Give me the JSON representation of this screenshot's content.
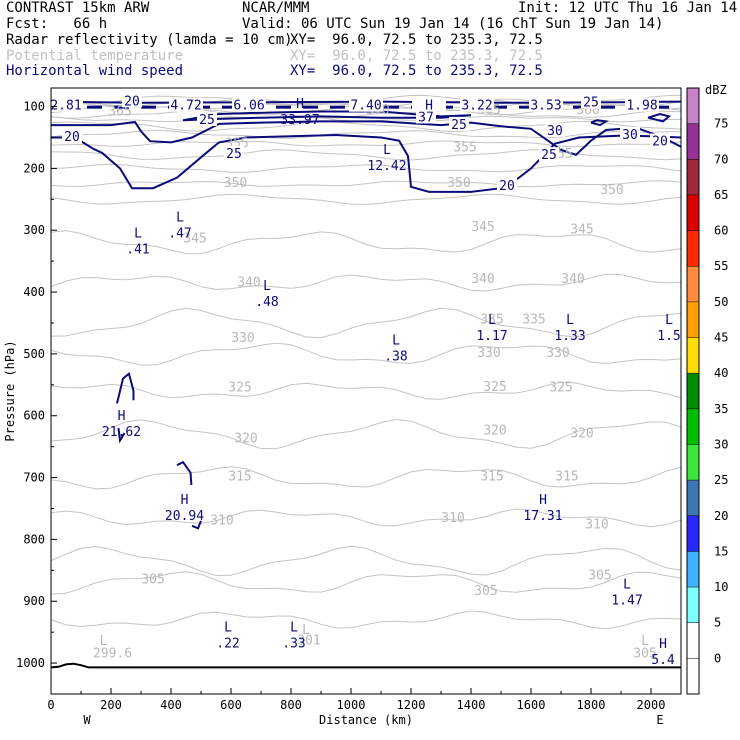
{
  "header": {
    "model": "CONTRAST 15km ARW",
    "org": "NCAR/MMM",
    "init": "Init: 12 UTC Thu 16 Jan 14",
    "fcst": "Fcst:   66 h",
    "valid": "Valid: 06 UTC Sun 19 Jan 14 (16 ChT Sun 19 Jan 14)",
    "fields": [
      {
        "name": "Radar reflectivity (lamda = 10 cm)",
        "xy": "XY=  96.0, 72.5 to 235.3, 72.5",
        "color": "#000000"
      },
      {
        "name": "Potential temperature",
        "xy": "XY=  96.0, 72.5 to 235.3, 72.5",
        "color": "#c0c0c0"
      },
      {
        "name": "Horizontal wind speed",
        "xy": "XY=  96.0, 72.5 to 235.3, 72.5",
        "color": "#0b0b7a"
      }
    ]
  },
  "chart_data": {
    "type": "cross-section contour",
    "xlabel": "Distance (km)",
    "ylabel": "Pressure (hPa)",
    "xlim": [
      0,
      2100
    ],
    "ylim": [
      1050,
      70
    ],
    "x_ticks": [
      0,
      200,
      400,
      600,
      800,
      1000,
      1200,
      1400,
      1600,
      1800,
      2000
    ],
    "y_ticks": [
      100,
      200,
      300,
      400,
      500,
      600,
      700,
      800,
      900,
      1000
    ],
    "x_end_labels": {
      "left": "W",
      "right": "E"
    },
    "colorbar": {
      "unit": "dBZ",
      "levels": [
        -5,
        0,
        5,
        10,
        15,
        20,
        25,
        30,
        35,
        40,
        45,
        50,
        55,
        60,
        65,
        70,
        75
      ],
      "tick_labels": [
        "0",
        "5",
        "10",
        "15",
        "20",
        "25",
        "30",
        "35",
        "40",
        "45",
        "50",
        "55",
        "60",
        "65",
        "70",
        "75"
      ],
      "colors": [
        "#ffffff",
        "#ffffff",
        "#7fffff",
        "#3cb4ff",
        "#2828ff",
        "#3c78b4",
        "#3ce63c",
        "#00be00",
        "#008c00",
        "#ffdc00",
        "#ffa000",
        "#ff8c3c",
        "#ff2800",
        "#dc0000",
        "#a0283c",
        "#963296",
        "#c882c8"
      ]
    },
    "theta_labels": [
      {
        "text": "365",
        "x": 230,
        "p": 106
      },
      {
        "text": "355",
        "x": 620,
        "p": 158
      },
      {
        "text": "355",
        "x": 1380,
        "p": 165
      },
      {
        "text": "355",
        "x": 1700,
        "p": 175
      },
      {
        "text": "350",
        "x": 615,
        "p": 222
      },
      {
        "text": "350",
        "x": 1360,
        "p": 222
      },
      {
        "text": "350",
        "x": 1870,
        "p": 233
      },
      {
        "text": "345",
        "x": 480,
        "p": 312
      },
      {
        "text": "345",
        "x": 1440,
        "p": 293
      },
      {
        "text": "345",
        "x": 1770,
        "p": 297
      },
      {
        "text": "340",
        "x": 660,
        "p": 383
      },
      {
        "text": "340",
        "x": 1440,
        "p": 377
      },
      {
        "text": "340",
        "x": 1740,
        "p": 377
      },
      {
        "text": "335",
        "x": 1470,
        "p": 443
      },
      {
        "text": "335",
        "x": 1610,
        "p": 443
      },
      {
        "text": "330",
        "x": 640,
        "p": 473
      },
      {
        "text": "330",
        "x": 1460,
        "p": 497
      },
      {
        "text": "330",
        "x": 1690,
        "p": 497
      },
      {
        "text": "325",
        "x": 630,
        "p": 553
      },
      {
        "text": "325",
        "x": 1480,
        "p": 552
      },
      {
        "text": "325",
        "x": 1700,
        "p": 553
      },
      {
        "text": "320",
        "x": 650,
        "p": 635
      },
      {
        "text": "320",
        "x": 1480,
        "p": 622
      },
      {
        "text": "320",
        "x": 1770,
        "p": 627
      },
      {
        "text": "315",
        "x": 630,
        "p": 697
      },
      {
        "text": "315",
        "x": 1470,
        "p": 697
      },
      {
        "text": "315",
        "x": 1720,
        "p": 697
      },
      {
        "text": "310",
        "x": 570,
        "p": 768
      },
      {
        "text": "310",
        "x": 1340,
        "p": 764
      },
      {
        "text": "310",
        "x": 1820,
        "p": 774
      },
      {
        "text": "305",
        "x": 340,
        "p": 863
      },
      {
        "text": "305",
        "x": 1450,
        "p": 882
      },
      {
        "text": "305",
        "x": 1830,
        "p": 857
      },
      {
        "text": "301",
        "x": 860,
        "p": 962
      },
      {
        "text": "L",
        "x": 850,
        "p": 945
      },
      {
        "text": "L",
        "x": 175,
        "p": 963
      },
      {
        "text": "299.6",
        "x": 205,
        "p": 983
      },
      {
        "text": "L",
        "x": 1980,
        "p": 963
      },
      {
        "text": "305",
        "x": 1980,
        "p": 983
      },
      {
        "text": "370",
        "x": 1090,
        "p": 104
      },
      {
        "text": "365",
        "x": 1460,
        "p": 104
      },
      {
        "text": "360",
        "x": 1790,
        "p": 104
      }
    ],
    "wind_contour_labels": [
      {
        "text": "20",
        "x": 270,
        "p": 90
      },
      {
        "text": "25",
        "x": 520,
        "p": 120
      },
      {
        "text": "37",
        "x": 1250,
        "p": 116
      },
      {
        "text": "25",
        "x": 1360,
        "p": 128
      },
      {
        "text": "25",
        "x": 1800,
        "p": 92
      },
      {
        "text": "30",
        "x": 1680,
        "p": 138
      },
      {
        "text": "30",
        "x": 1930,
        "p": 144
      },
      {
        "text": "20",
        "x": 70,
        "p": 148
      },
      {
        "text": "25",
        "x": 610,
        "p": 175
      },
      {
        "text": "25",
        "x": 1660,
        "p": 177
      },
      {
        "text": "20",
        "x": 2030,
        "p": 155
      },
      {
        "text": "20",
        "x": 1520,
        "p": 227
      }
    ],
    "extrema": [
      {
        "type": "H",
        "value": "33.97",
        "x": 830,
        "p": 109
      },
      {
        "type": "L",
        "value": "12.42",
        "x": 1120,
        "p": 183
      },
      {
        "type": "L",
        "value": ".47",
        "x": 430,
        "p": 292
      },
      {
        "type": "L",
        "value": ".41",
        "x": 290,
        "p": 318
      },
      {
        "type": "L",
        "value": ".48",
        "x": 720,
        "p": 403
      },
      {
        "type": "L",
        "value": "1.17",
        "x": 1470,
        "p": 458
      },
      {
        "type": "L",
        "value": "1.33",
        "x": 1730,
        "p": 458
      },
      {
        "type": "L",
        "value": "1.5",
        "x": 2060,
        "p": 458
      },
      {
        "type": "L",
        "value": ".38",
        "x": 1150,
        "p": 491
      },
      {
        "type": "H",
        "value": "21.62",
        "x": 235,
        "p": 613
      },
      {
        "type": "H",
        "value": "20.94",
        "x": 445,
        "p": 749
      },
      {
        "type": "H",
        "value": "17.31",
        "x": 1640,
        "p": 749
      },
      {
        "type": "L",
        "value": "1.47",
        "x": 1920,
        "p": 886
      },
      {
        "type": "L",
        "value": ".22",
        "x": 590,
        "p": 955
      },
      {
        "type": "L",
        "value": ".33",
        "x": 810,
        "p": 955
      },
      {
        "type": "H",
        "value": "5.4",
        "x": 2040,
        "p": 982
      }
    ],
    "jet_values": [
      {
        "text": "2.81",
        "x": 50
      },
      {
        "text": "4.72",
        "x": 450
      },
      {
        "text": "6.06",
        "x": 660
      },
      {
        "text": "7.40",
        "x": 1050
      },
      {
        "text": "H",
        "x": 1260
      },
      {
        "text": "3.22",
        "x": 1420
      },
      {
        "text": "3.53",
        "x": 1650
      },
      {
        "text": "1.98",
        "x": 1970
      }
    ]
  }
}
